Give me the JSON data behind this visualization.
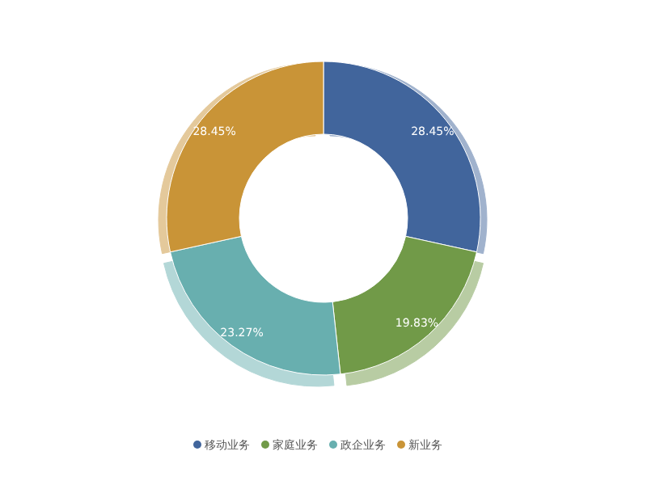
{
  "chart_data": {
    "type": "donut",
    "categories": [
      "移动业务",
      "家庭业务",
      "政企业务",
      "新业务"
    ],
    "values": [
      28.45,
      19.83,
      23.27,
      28.45
    ],
    "colors": [
      "#41659c",
      "#719a48",
      "#68afaf",
      "#c99437"
    ],
    "value_labels": [
      "28.45%",
      "19.83%",
      "23.27%",
      "28.45%"
    ],
    "legend": "bottom"
  }
}
